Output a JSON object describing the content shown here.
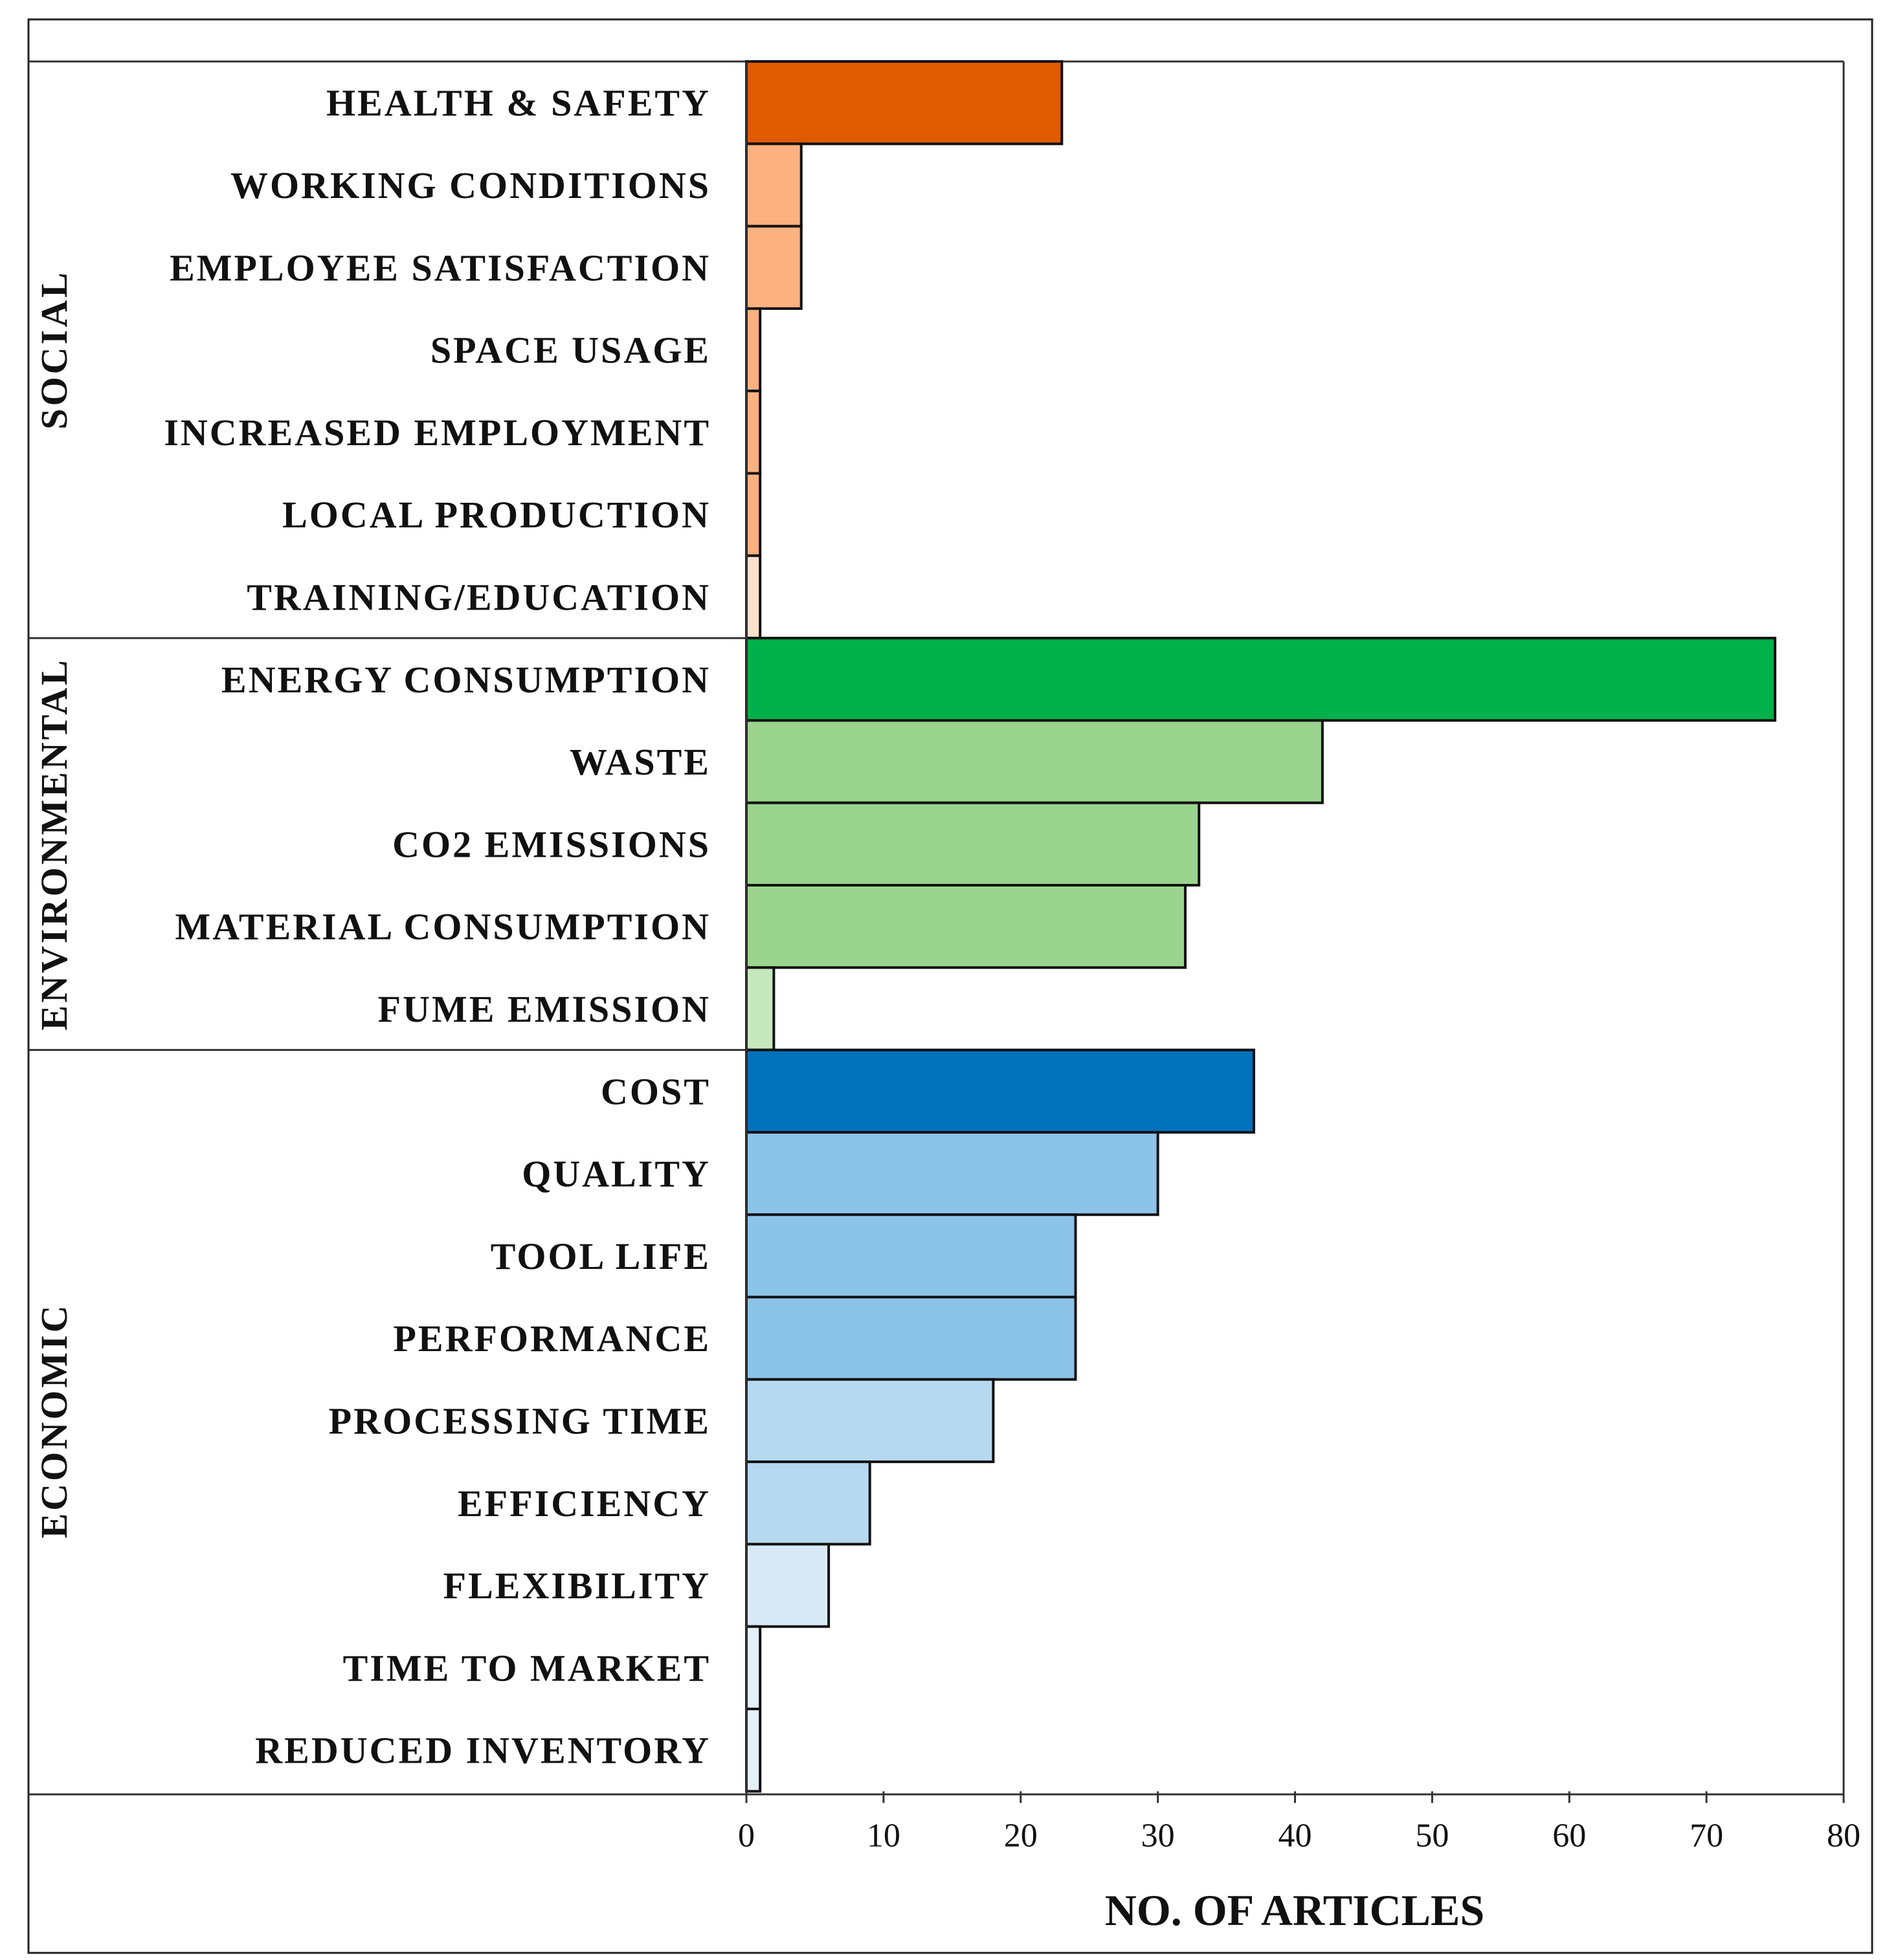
{
  "chart_data": {
    "type": "bar",
    "orientation": "horizontal",
    "xlabel": "NO. OF ARTICLES",
    "xlim": [
      0,
      80
    ],
    "xticks": [
      0,
      10,
      20,
      30,
      40,
      50,
      60,
      70,
      80
    ],
    "groups": [
      {
        "name": "SOCIAL",
        "categories": [
          {
            "label": "HEALTH & SAFETY",
            "value": 23,
            "color": "#e05a00"
          },
          {
            "label": "WORKING CONDITIONS",
            "value": 4,
            "color": "#fbb180"
          },
          {
            "label": "EMPLOYEE SATISFACTION",
            "value": 4,
            "color": "#fbb180"
          },
          {
            "label": "SPACE USAGE",
            "value": 1,
            "color": "#fbb180"
          },
          {
            "label": "INCREASED EMPLOYMENT",
            "value": 1,
            "color": "#fbb180"
          },
          {
            "label": "LOCAL PRODUCTION",
            "value": 1,
            "color": "#fbb180"
          },
          {
            "label": "TRAINING/EDUCATION",
            "value": 1,
            "color": "#fde0cc"
          }
        ]
      },
      {
        "name": "ENVIRONMENTAL",
        "categories": [
          {
            "label": "ENERGY CONSUMPTION",
            "value": 75,
            "color": "#00b04a"
          },
          {
            "label": "WASTE",
            "value": 42,
            "color": "#9bd48e"
          },
          {
            "label": "CO2 EMISSIONS",
            "value": 33,
            "color": "#9bd48e"
          },
          {
            "label": "MATERIAL CONSUMPTION",
            "value": 32,
            "color": "#9bd48e"
          },
          {
            "label": "FUME EMISSION",
            "value": 2,
            "color": "#c6e8bd"
          }
        ]
      },
      {
        "name": "ECONOMIC",
        "categories": [
          {
            "label": "COST",
            "value": 37,
            "color": "#0072bb"
          },
          {
            "label": "QUALITY",
            "value": 30,
            "color": "#8cc3e8"
          },
          {
            "label": "TOOL LIFE",
            "value": 24,
            "color": "#8cc3e8"
          },
          {
            "label": "PERFORMANCE",
            "value": 24,
            "color": "#8cc3e8"
          },
          {
            "label": "PROCESSING TIME",
            "value": 18,
            "color": "#b6d9f0"
          },
          {
            "label": "EFFICIENCY",
            "value": 9,
            "color": "#b6d9f0"
          },
          {
            "label": "FLEXIBILITY",
            "value": 6,
            "color": "#d9eaf7"
          },
          {
            "label": "TIME TO MARKET",
            "value": 1,
            "color": "#e3f0fa"
          },
          {
            "label": "REDUCED INVENTORY",
            "value": 1,
            "color": "#e3f0fa"
          }
        ]
      }
    ]
  }
}
